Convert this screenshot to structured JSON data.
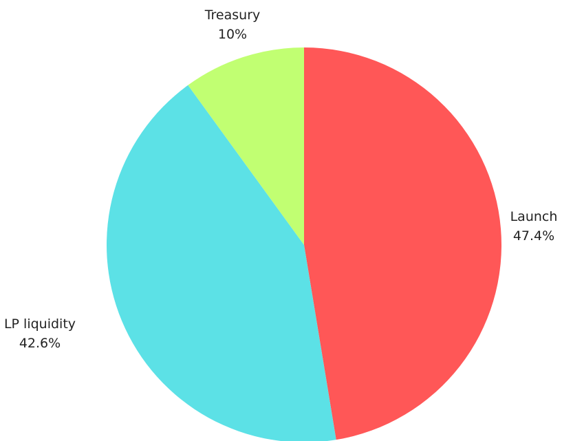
{
  "chart_data": {
    "type": "pie",
    "title": "",
    "start": "12 o'clock",
    "direction": "clockwise",
    "legend": "none",
    "slices": [
      {
        "label": "Launch",
        "value": 47.4,
        "value_label": "47.4%",
        "color": "#ff5757"
      },
      {
        "label": "LP liquidity",
        "value": 42.6,
        "value_label": "42.6%",
        "color": "#5ce1e6"
      },
      {
        "label": "Treasury",
        "value": 10,
        "value_label": "10%",
        "color": "#c1ff72"
      }
    ]
  }
}
